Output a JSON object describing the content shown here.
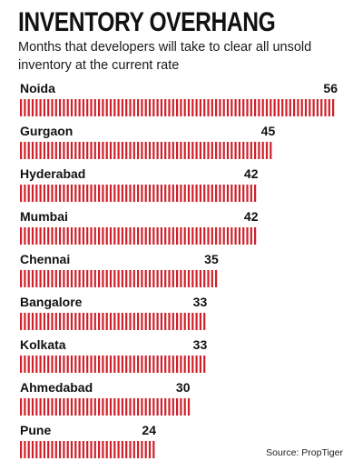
{
  "chart_data": {
    "type": "bar",
    "title": "INVENTORY OVERHANG",
    "subtitle": "Months that developers will take to clear all unsold inventory at the current rate",
    "categories": [
      "Noida",
      "Gurgaon",
      "Hyderabad",
      "Mumbai",
      "Chennai",
      "Bangalore",
      "Kolkata",
      "Ahmedabad",
      "Pune"
    ],
    "values": [
      56,
      45,
      42,
      42,
      35,
      33,
      33,
      30,
      24
    ],
    "orientation": "horizontal",
    "xlabel": "",
    "ylabel": "",
    "bar_color": "#d0202a",
    "source": "Source: PropTiger"
  }
}
